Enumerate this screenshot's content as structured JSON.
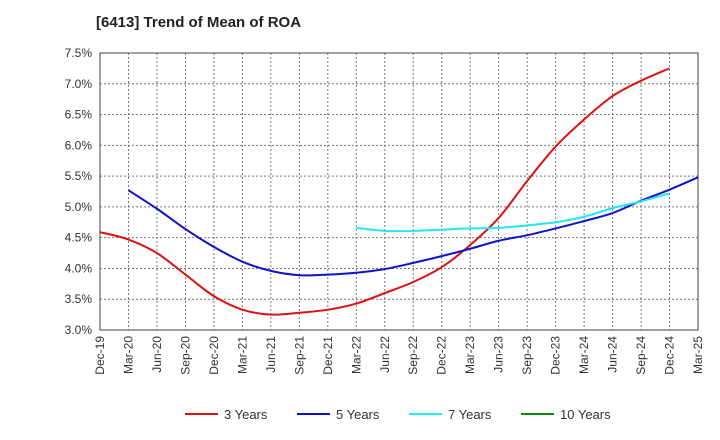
{
  "chart_data": {
    "type": "line",
    "title": "[6413]  Trend of Mean of ROA",
    "xlabel": "",
    "ylabel": "",
    "ylim": [
      3.0,
      7.5
    ],
    "y_ticks": [
      3.0,
      3.5,
      4.0,
      4.5,
      5.0,
      5.5,
      6.0,
      6.5,
      7.0,
      7.5
    ],
    "y_tick_labels": [
      "3.0%",
      "3.5%",
      "4.0%",
      "4.5%",
      "5.0%",
      "5.5%",
      "6.0%",
      "6.5%",
      "7.0%",
      "7.5%"
    ],
    "x_tick_labels": [
      "Dec-19",
      "Mar-20",
      "Jun-20",
      "Sep-20",
      "Dec-20",
      "Mar-21",
      "Jun-21",
      "Sep-21",
      "Dec-21",
      "Mar-22",
      "Jun-22",
      "Sep-22",
      "Dec-22",
      "Mar-23",
      "Jun-23",
      "Sep-23",
      "Dec-23",
      "Mar-24",
      "Jun-24",
      "Sep-24",
      "Dec-24",
      "Mar-25"
    ],
    "grid": true,
    "legend_position": "bottom",
    "series": [
      {
        "name": "3 Years",
        "color": "#dd1111",
        "start_index": 0,
        "values": [
          4.59,
          4.47,
          4.25,
          3.9,
          3.55,
          3.33,
          3.25,
          3.28,
          3.33,
          3.43,
          3.6,
          3.78,
          4.02,
          4.38,
          4.82,
          5.42,
          5.98,
          6.42,
          6.8,
          7.05,
          7.25
        ]
      },
      {
        "name": "5 Years",
        "color": "#1111cc",
        "start_index": 1,
        "values": [
          5.27,
          4.97,
          4.64,
          4.35,
          4.11,
          3.96,
          3.89,
          3.9,
          3.93,
          3.99,
          4.09,
          4.2,
          4.32,
          4.45,
          4.54,
          4.65,
          4.77,
          4.9,
          5.1,
          5.28,
          5.48
        ]
      },
      {
        "name": "7 Years",
        "color": "#22e8f2",
        "start_index": 9,
        "values": [
          4.66,
          4.61,
          4.61,
          4.63,
          4.65,
          4.66,
          4.7,
          4.75,
          4.84,
          4.98,
          5.09,
          5.22
        ]
      },
      {
        "name": "10 Years",
        "color": "#118811",
        "start_index": 0,
        "values": []
      }
    ]
  }
}
